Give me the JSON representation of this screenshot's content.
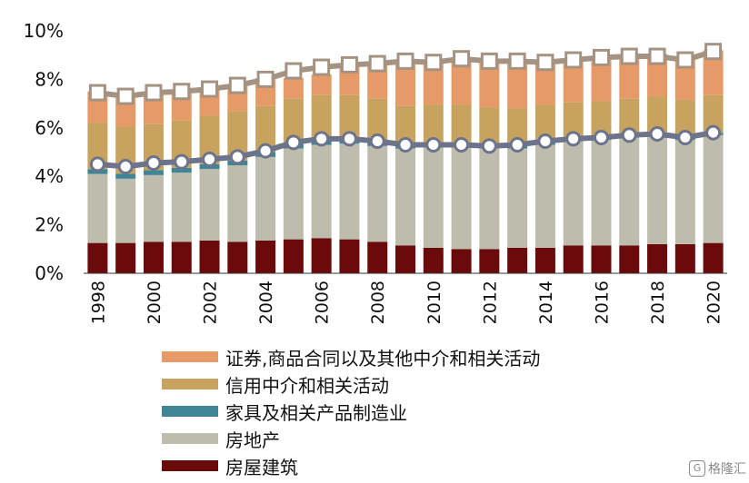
{
  "chart_data": {
    "type": "bar",
    "stacked": true,
    "years": [
      1998,
      1999,
      2000,
      2001,
      2002,
      2003,
      2004,
      2005,
      2006,
      2007,
      2008,
      2009,
      2010,
      2011,
      2012,
      2013,
      2014,
      2015,
      2016,
      2017,
      2018,
      2019,
      2020
    ],
    "x_tick_labels": [
      "1998",
      "2000",
      "2002",
      "2004",
      "2006",
      "2008",
      "2010",
      "2012",
      "2014",
      "2016",
      "2018",
      "2020"
    ],
    "y_tick_labels": [
      "0%",
      "2%",
      "4%",
      "6%",
      "8%",
      "10%"
    ],
    "ylim": [
      0,
      10
    ],
    "series": [
      {
        "name": "房屋建筑",
        "color": "#6b0a0a",
        "values": [
          1.25,
          1.25,
          1.3,
          1.3,
          1.35,
          1.3,
          1.35,
          1.4,
          1.45,
          1.4,
          1.3,
          1.15,
          1.05,
          1.0,
          1.0,
          1.05,
          1.05,
          1.15,
          1.15,
          1.15,
          1.2,
          1.2,
          1.25
        ]
      },
      {
        "name": "房地产",
        "color": "#bebdad",
        "values": [
          2.85,
          2.65,
          2.75,
          2.85,
          2.95,
          3.15,
          3.45,
          3.75,
          3.85,
          3.95,
          3.95,
          4.0,
          4.15,
          4.25,
          4.15,
          4.1,
          4.25,
          4.3,
          4.35,
          4.45,
          4.45,
          4.3,
          4.45
        ]
      },
      {
        "name": "家具及相关产品制造业",
        "color": "#3f8596",
        "values": [
          0.2,
          0.2,
          0.2,
          0.2,
          0.2,
          0.2,
          0.2,
          0.2,
          0.2,
          0.2,
          0.2,
          0.15,
          0.15,
          0.15,
          0.15,
          0.15,
          0.15,
          0.1,
          0.1,
          0.1,
          0.1,
          0.1,
          0.1
        ]
      },
      {
        "name": "信用中介和相关活动",
        "color": "#c8a35f",
        "values": [
          1.9,
          1.95,
          1.9,
          1.95,
          2.0,
          2.05,
          1.9,
          1.85,
          1.85,
          1.8,
          1.75,
          1.6,
          1.6,
          1.55,
          1.55,
          1.5,
          1.5,
          1.5,
          1.5,
          1.5,
          1.55,
          1.55,
          1.55
        ]
      },
      {
        "name": "证券,商品合同以及其他中介和相关活动",
        "color": "#e59a68",
        "values": [
          1.3,
          1.25,
          1.35,
          1.25,
          1.1,
          1.05,
          1.15,
          0.85,
          0.85,
          1.25,
          1.4,
          1.9,
          1.75,
          1.95,
          1.85,
          1.9,
          1.75,
          1.75,
          1.85,
          1.8,
          1.75,
          1.65,
          1.85
        ]
      }
    ],
    "line_series": [
      {
        "color": "#6c738a",
        "values": [
          4.5,
          4.4,
          4.55,
          4.6,
          4.7,
          4.8,
          5.05,
          5.4,
          5.55,
          5.55,
          5.45,
          5.3,
          5.3,
          5.3,
          5.25,
          5.3,
          5.45,
          5.55,
          5.6,
          5.7,
          5.75,
          5.6,
          5.8
        ]
      },
      {
        "color": "#a49382",
        "values": [
          7.45,
          7.3,
          7.45,
          7.5,
          7.6,
          7.75,
          8.0,
          8.35,
          8.5,
          8.6,
          8.65,
          8.75,
          8.7,
          8.85,
          8.75,
          8.75,
          8.7,
          8.8,
          8.9,
          8.95,
          8.95,
          8.8,
          9.15
        ]
      }
    ],
    "legend_position": "bottom",
    "grid": false
  },
  "watermark": {
    "badge": "G",
    "text": "格隆汇"
  }
}
